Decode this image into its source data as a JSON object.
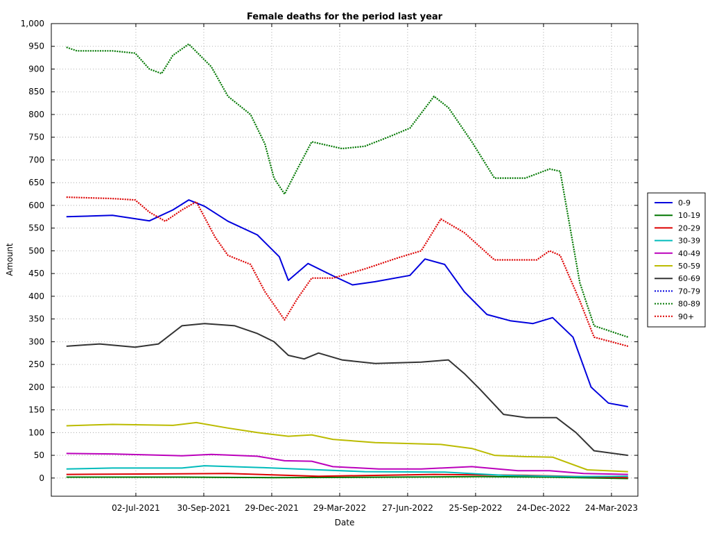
{
  "chart_data": {
    "type": "line",
    "title": "Female deaths for the period last year",
    "xlabel": "Date",
    "ylabel": "Amount",
    "ylim": [
      -40,
      1000
    ],
    "yticks": [
      0,
      50,
      100,
      150,
      200,
      250,
      300,
      350,
      400,
      450,
      500,
      550,
      600,
      650,
      700,
      750,
      800,
      850,
      900,
      950,
      1000
    ],
    "ytick_labels": [
      "0",
      "50",
      "100",
      "150",
      "200",
      "250",
      "300",
      "350",
      "400",
      "450",
      "500",
      "550",
      "600",
      "650",
      "700",
      "750",
      "800",
      "850",
      "900",
      "950",
      "1,000"
    ],
    "xlim": [
      "2021-03-12",
      "2023-04-28"
    ],
    "xticks": [
      "2021-07-02",
      "2021-09-30",
      "2021-12-29",
      "2022-03-29",
      "2022-06-27",
      "2022-09-25",
      "2022-12-24",
      "2023-03-24"
    ],
    "xtick_labels": [
      "02-Jul-2021",
      "30-Sep-2021",
      "29-Dec-2021",
      "29-Mar-2022",
      "27-Jun-2022",
      "25-Sep-2022",
      "24-Dec-2022",
      "24-Mar-2023"
    ],
    "grid": true,
    "legend_position": "right",
    "series": [
      {
        "name": "0-9",
        "color": "#0000dd",
        "style": "solid",
        "x": [
          "2021-04-01",
          "2021-06-01",
          "2021-07-20",
          "2021-08-20",
          "2021-09-10",
          "2021-10-01",
          "2021-11-01",
          "2021-12-10",
          "2022-01-08",
          "2022-01-20",
          "2022-02-15",
          "2022-03-20",
          "2022-04-15",
          "2022-05-15",
          "2022-06-30",
          "2022-07-20",
          "2022-08-15",
          "2022-09-10",
          "2022-10-10",
          "2022-11-10",
          "2022-12-10",
          "2023-01-05",
          "2023-02-01",
          "2023-02-25",
          "2023-03-20",
          "2023-04-15"
        ],
        "y": [
          575,
          578,
          566,
          590,
          612,
          598,
          565,
          535,
          487,
          435,
          472,
          445,
          425,
          432,
          446,
          482,
          470,
          410,
          360,
          346,
          340,
          353,
          310,
          200,
          165,
          157
        ]
      },
      {
        "name": "10-19",
        "color": "#007700",
        "style": "solid",
        "x": [
          "2021-04-01",
          "2021-09-01",
          "2022-01-01",
          "2022-06-01",
          "2022-10-01",
          "2023-01-01",
          "2023-04-15"
        ],
        "y": [
          2,
          2,
          1,
          2,
          3,
          2,
          -1
        ]
      },
      {
        "name": "20-29",
        "color": "#dd0000",
        "style": "solid",
        "x": [
          "2021-04-01",
          "2021-11-01",
          "2022-03-01",
          "2022-08-01",
          "2022-12-01",
          "2023-04-15"
        ],
        "y": [
          8,
          10,
          4,
          8,
          6,
          1
        ]
      },
      {
        "name": "30-39",
        "color": "#00bbbb",
        "style": "solid",
        "x": [
          "2021-04-01",
          "2021-06-01",
          "2021-09-01",
          "2021-10-01",
          "2021-12-15",
          "2022-02-15",
          "2022-05-01",
          "2022-08-15",
          "2022-11-01",
          "2023-02-01",
          "2023-04-15"
        ],
        "y": [
          20,
          22,
          22,
          27,
          23,
          19,
          14,
          13,
          6,
          3,
          4
        ]
      },
      {
        "name": "40-49",
        "color": "#bb00bb",
        "style": "solid",
        "x": [
          "2021-04-01",
          "2021-06-01",
          "2021-09-01",
          "2021-10-10",
          "2021-12-10",
          "2022-01-15",
          "2022-02-20",
          "2022-03-20",
          "2022-05-20",
          "2022-07-15",
          "2022-09-20",
          "2022-11-20",
          "2023-01-01",
          "2023-02-15",
          "2023-04-15"
        ],
        "y": [
          54,
          53,
          49,
          52,
          48,
          38,
          37,
          25,
          20,
          20,
          25,
          16,
          16,
          10,
          8
        ]
      },
      {
        "name": "50-59",
        "color": "#bbbb00",
        "style": "solid",
        "x": [
          "2021-04-01",
          "2021-06-01",
          "2021-08-20",
          "2021-09-20",
          "2021-11-01",
          "2021-12-10",
          "2022-01-20",
          "2022-02-20",
          "2022-03-20",
          "2022-05-15",
          "2022-08-10",
          "2022-09-20",
          "2022-10-20",
          "2022-12-01",
          "2023-01-05",
          "2023-02-20",
          "2023-04-15"
        ],
        "y": [
          115,
          118,
          116,
          122,
          110,
          100,
          92,
          95,
          85,
          78,
          74,
          65,
          50,
          47,
          46,
          18,
          14
        ]
      },
      {
        "name": "60-69",
        "color": "#333333",
        "style": "solid",
        "x": [
          "2021-04-01",
          "2021-05-15",
          "2021-07-01",
          "2021-08-01",
          "2021-09-01",
          "2021-10-01",
          "2021-11-10",
          "2021-12-10",
          "2022-01-01",
          "2022-01-20",
          "2022-02-10",
          "2022-03-01",
          "2022-04-01",
          "2022-05-15",
          "2022-07-15",
          "2022-08-20",
          "2022-09-10",
          "2022-10-01",
          "2022-11-01",
          "2022-12-01",
          "2023-01-10",
          "2023-02-05",
          "2023-03-01",
          "2023-04-15"
        ],
        "y": [
          290,
          295,
          288,
          295,
          335,
          340,
          335,
          318,
          300,
          270,
          262,
          275,
          260,
          252,
          255,
          260,
          230,
          195,
          140,
          133,
          133,
          100,
          60,
          50
        ]
      },
      {
        "name": "70-79",
        "color": "#0000dd",
        "style": "dotted",
        "x": [],
        "y": []
      },
      {
        "name": "80-89",
        "color": "#007700",
        "style": "dotted",
        "x": [
          "2021-04-01",
          "2021-04-15",
          "2021-06-01",
          "2021-07-01",
          "2021-07-20",
          "2021-08-05",
          "2021-08-20",
          "2021-09-10",
          "2021-10-10",
          "2021-11-01",
          "2021-12-01",
          "2021-12-20",
          "2022-01-01",
          "2022-01-15",
          "2022-02-01",
          "2022-02-20",
          "2022-04-01",
          "2022-05-01",
          "2022-06-01",
          "2022-06-30",
          "2022-08-01",
          "2022-08-20",
          "2022-09-20",
          "2022-10-20",
          "2022-11-30",
          "2023-01-01",
          "2023-01-15",
          "2023-02-10",
          "2023-03-01",
          "2023-04-15"
        ],
        "y": [
          948,
          940,
          940,
          935,
          900,
          890,
          930,
          955,
          905,
          840,
          800,
          735,
          660,
          625,
          680,
          740,
          725,
          730,
          750,
          770,
          840,
          815,
          740,
          660,
          660,
          680,
          675,
          430,
          335,
          310
        ]
      },
      {
        "name": "90+",
        "color": "#dd0000",
        "style": "dotted",
        "x": [
          "2021-04-01",
          "2021-06-01",
          "2021-07-01",
          "2021-07-20",
          "2021-08-10",
          "2021-09-01",
          "2021-09-20",
          "2021-10-15",
          "2021-11-01",
          "2021-12-01",
          "2021-12-20",
          "2022-01-15",
          "2022-02-01",
          "2022-02-20",
          "2022-03-20",
          "2022-05-01",
          "2022-06-15",
          "2022-07-15",
          "2022-08-10",
          "2022-09-10",
          "2022-10-20",
          "2022-12-15",
          "2023-01-01",
          "2023-01-15",
          "2023-02-10",
          "2023-03-01",
          "2023-04-15"
        ],
        "y": [
          618,
          615,
          612,
          585,
          565,
          590,
          608,
          530,
          490,
          470,
          410,
          348,
          395,
          440,
          440,
          460,
          485,
          500,
          570,
          540,
          480,
          480,
          500,
          490,
          390,
          310,
          290
        ]
      }
    ]
  }
}
